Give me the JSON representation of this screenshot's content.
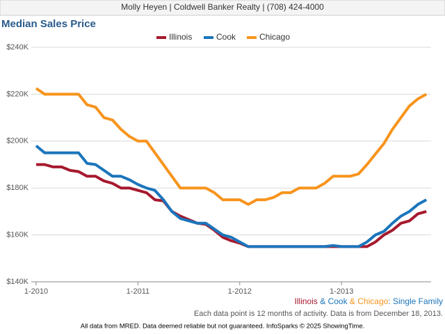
{
  "header": {
    "text": "Molly Heyen | Coldwell Banker Realty | (708) 424-4000"
  },
  "chart_data": {
    "type": "line",
    "title": "Median Sales Price",
    "categories": [
      "1-2010",
      null,
      null,
      null,
      null,
      null,
      null,
      null,
      null,
      null,
      null,
      null,
      "1-2011",
      null,
      null,
      null,
      null,
      null,
      null,
      null,
      null,
      null,
      null,
      null,
      "1-2012",
      null,
      null,
      null,
      null,
      null,
      null,
      null,
      null,
      null,
      null,
      null,
      "1-2013",
      null,
      null,
      null,
      null,
      null,
      null,
      null,
      null,
      null,
      null
    ],
    "series": [
      {
        "name": "Illinois",
        "color": "#a6192e",
        "values": [
          190,
          190,
          189,
          189,
          187.5,
          187,
          185,
          185,
          183,
          182,
          180,
          180,
          179,
          178,
          175,
          174.5,
          170,
          168,
          166.5,
          165,
          164.5,
          162,
          159,
          157.5,
          156.5,
          155,
          155,
          155,
          155,
          155,
          155,
          155,
          155,
          155,
          155,
          155,
          155,
          155,
          155,
          155,
          157,
          160,
          162,
          165,
          166,
          169,
          170
        ]
      },
      {
        "name": "Cook",
        "color": "#1b75bb",
        "values": [
          198,
          195,
          195,
          195,
          195,
          195,
          190.5,
          190,
          187.5,
          185,
          185,
          183.5,
          181.5,
          180,
          179,
          175,
          170,
          167,
          166,
          165,
          165,
          162.5,
          160,
          159,
          157,
          155,
          155,
          155,
          155,
          155,
          155,
          155,
          155,
          155,
          155,
          155.5,
          155,
          155,
          155,
          157,
          160,
          161.5,
          165,
          168,
          170,
          173,
          175
        ]
      },
      {
        "name": "Chicago",
        "color": "#f7941d",
        "values": [
          222.5,
          220,
          220,
          220,
          220,
          220,
          215.5,
          214.5,
          210,
          209,
          205,
          202,
          200,
          200,
          195,
          190,
          185,
          180,
          180,
          180,
          180,
          178,
          175,
          175,
          175,
          173,
          175,
          175,
          176,
          178,
          178,
          180,
          180,
          180,
          182,
          185,
          185,
          185,
          186,
          190,
          194.5,
          199,
          205,
          210,
          215,
          218,
          220
        ]
      }
    ],
    "ylim": [
      140,
      240
    ],
    "yticks": [
      {
        "value": 140,
        "label": "$140K"
      },
      {
        "value": 160,
        "label": "$160K"
      },
      {
        "value": 180,
        "label": "$180K"
      },
      {
        "value": 200,
        "label": "$200K"
      },
      {
        "value": 220,
        "label": "$220K"
      },
      {
        "value": 240,
        "label": "$240K"
      }
    ],
    "grid": true,
    "legend": "top",
    "caption_joiners": [
      " & ",
      " & ",
      ": "
    ],
    "caption_suffix": "Single Family",
    "note": "Each data point is 12 months of activity. Data is from December 18, 2013."
  },
  "footer": {
    "text": "All data from MRED. Data deemed reliable but not guaranteed. InfoSparks © 2025 ShowingTime."
  }
}
